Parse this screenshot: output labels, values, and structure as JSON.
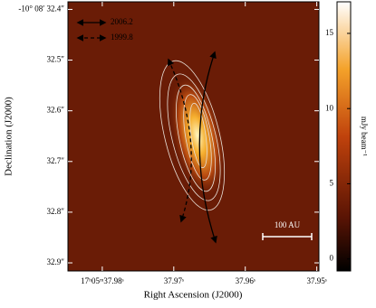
{
  "chart_data": {
    "type": "image",
    "xlabel": "Right Ascension (J2000)",
    "ylabel": "Declination (J2000)",
    "colorbar_label": "mJy beam⁻¹",
    "xlim": [
      37.9848,
      37.9497
    ],
    "xticks": [
      {
        "value": 37.98,
        "label": "17ʰ05ᵐ37.98ˢ"
      },
      {
        "value": 37.97,
        "label": "37.97ˢ"
      },
      {
        "value": 37.96,
        "label": "37.96ˢ"
      },
      {
        "value": 37.95,
        "label": "37.95ˢ"
      }
    ],
    "ylim": [
      32.916,
      32.385
    ],
    "yticks": [
      {
        "value": 32.4,
        "label": "-10° 08′ 32.4″"
      },
      {
        "value": 32.5,
        "label": "32.5″"
      },
      {
        "value": 32.6,
        "label": "32.6″"
      },
      {
        "value": 32.7,
        "label": "32.7″"
      },
      {
        "value": 32.8,
        "label": "32.8″"
      },
      {
        "value": 32.9,
        "label": "32.9″"
      }
    ],
    "clim": [
      -0.8,
      17.1
    ],
    "cticks": [
      0,
      5,
      10,
      15
    ],
    "legend": [
      "2006.2",
      "1999.8"
    ],
    "scale_bar": "100 AU"
  }
}
